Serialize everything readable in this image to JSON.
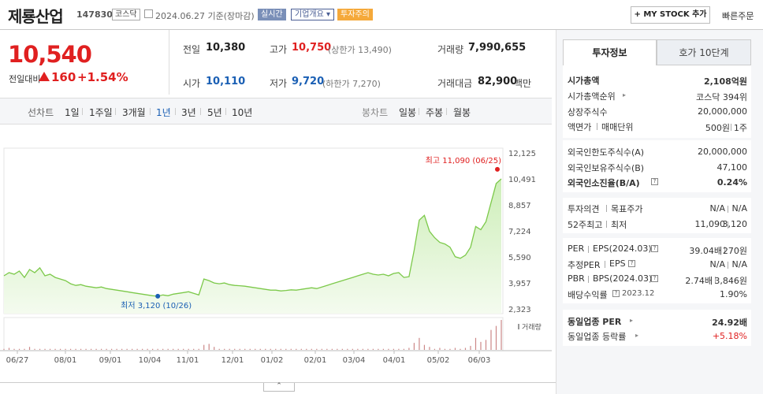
{
  "header": {
    "name": "제룡산업",
    "code": "147830",
    "market": "코스닥",
    "date": "2024.06.27 기준(장마감)",
    "realtime": "실시간",
    "company_info": "기업개요",
    "warning": "투자주의",
    "mystock": "+ MY STOCK 추가",
    "fast_order": "빠른주문"
  },
  "price": {
    "current": "10,540",
    "change_label": "전일대비",
    "change": "160",
    "change_pct": "+1.54%"
  },
  "quote": {
    "prev_label": "전일",
    "prev": "10,380",
    "high_label": "고가",
    "high": "10,750",
    "upper": "(상한가 13,490)",
    "volume_label": "거래량",
    "volume": "7,990,655",
    "open_label": "시가",
    "open": "10,110",
    "low_label": "저가",
    "low": "9,720",
    "lower": "(하한가 7,270)",
    "amount_label": "거래대금",
    "amount": "82,900",
    "amount_unit": "백만"
  },
  "periods": {
    "line_label": "선차트",
    "line": [
      "1일",
      "1주일",
      "3개월",
      "1년",
      "3년",
      "5년",
      "10년"
    ],
    "selected": "1년",
    "candle_label": "봉차트",
    "candle": [
      "일봉",
      "주봉",
      "월봉"
    ]
  },
  "chart_data": {
    "type": "area",
    "x_ticks": [
      "06/27",
      "08/01",
      "09/01",
      "10/04",
      "11/01",
      "12/01",
      "01/02",
      "02/01",
      "03/04",
      "04/01",
      "05/02",
      "06/03"
    ],
    "y_ticks": [
      "12,125",
      "10,491",
      "8,857",
      "7,224",
      "5,590",
      "3,957",
      "2,323"
    ],
    "ylim": [
      2323,
      12125
    ],
    "max_label": "최고 11,090 (06/25)",
    "min_label": "최저 3,120 (10/26)",
    "volume_label": "거래량",
    "price": [
      4400,
      4600,
      4500,
      4700,
      4300,
      4800,
      4600,
      4900,
      4400,
      4500,
      4300,
      4200,
      4100,
      3900,
      3800,
      3850,
      3750,
      3700,
      3650,
      3700,
      3600,
      3550,
      3500,
      3450,
      3400,
      3350,
      3300,
      3250,
      3200,
      3150,
      3120,
      3200,
      3150,
      3250,
      3300,
      3350,
      3400,
      3300,
      3200,
      4200,
      4100,
      3950,
      3900,
      3950,
      3850,
      3800,
      3780,
      3750,
      3700,
      3650,
      3600,
      3550,
      3500,
      3500,
      3450,
      3480,
      3520,
      3500,
      3550,
      3600,
      3650,
      3600,
      3700,
      3800,
      3900,
      4000,
      4100,
      4200,
      4300,
      4400,
      4500,
      4600,
      4500,
      4450,
      4500,
      4400,
      4550,
      4600,
      4300,
      4350,
      6000,
      7900,
      8200,
      7200,
      6800,
      6500,
      6400,
      6200,
      5600,
      5500,
      5700,
      6200,
      7500,
      7300,
      7800,
      9000,
      10200,
      10491
    ],
    "volume": [
      1,
      2,
      1,
      1,
      1,
      3,
      1,
      1,
      1,
      1,
      1,
      1,
      1,
      1,
      1,
      1,
      1,
      1,
      1,
      1,
      1,
      1,
      1,
      1,
      1,
      1,
      1,
      1,
      1,
      1,
      1,
      1,
      1,
      1,
      1,
      1,
      1,
      1,
      1,
      5,
      6,
      3,
      1,
      1,
      1,
      1,
      1,
      1,
      1,
      1,
      1,
      1,
      1,
      1,
      1,
      1,
      1,
      1,
      1,
      1,
      1,
      1,
      1,
      1,
      1,
      1,
      1,
      1,
      1,
      1,
      1,
      1,
      1,
      1,
      1,
      1,
      1,
      1,
      1,
      2,
      7,
      12,
      5,
      3,
      1,
      2,
      1,
      1,
      2,
      1,
      2,
      4,
      12,
      8,
      10,
      20,
      24,
      30
    ]
  },
  "tabs": {
    "tab1": "투자정보",
    "tab2": "호가 10단계"
  },
  "invest": {
    "mcap_label": "시가총액",
    "mcap": "2,108억원",
    "rank_label": "시가총액순위",
    "rank": "코스닥 394위",
    "shares_label": "상장주식수",
    "shares": "20,000,000",
    "par_label": "액면가",
    "unit_label": "매매단위",
    "par": "500원",
    "unit": "1주",
    "foreign_limit_label": "외국인한도주식수(A)",
    "foreign_limit": "20,000,000",
    "foreign_hold_label": "외국인보유주식수(B)",
    "foreign_hold": "47,100",
    "foreign_ratio_label": "외국인소진율(B/A)",
    "foreign_ratio": "0.24%",
    "opinion_label": "투자의견",
    "target_label": "목표주가",
    "opinion": "N/A",
    "target": "N/A",
    "w52_label": "52주최고",
    "w52_low_label": "최저",
    "w52_high": "11,090",
    "w52_low": "3,120",
    "per_label": "PER",
    "eps_label": "EPS(2024.03)",
    "per": "39.04배",
    "eps": "270원",
    "est_per_label": "추정PER",
    "est_eps_label": "EPS",
    "est_per": "N/A",
    "est_eps": "N/A",
    "pbr_label": "PBR",
    "bps_label": "BPS(2024.03)",
    "pbr": "2.74배",
    "bps": "3,846원",
    "div_label": "배당수익률",
    "div_date": "2023.12",
    "div": "1.90%",
    "ind_per_label": "동일업종 PER",
    "ind_per": "24.92배",
    "ind_rate_label": "동일업종 등락률",
    "ind_rate": "+5.18%"
  }
}
